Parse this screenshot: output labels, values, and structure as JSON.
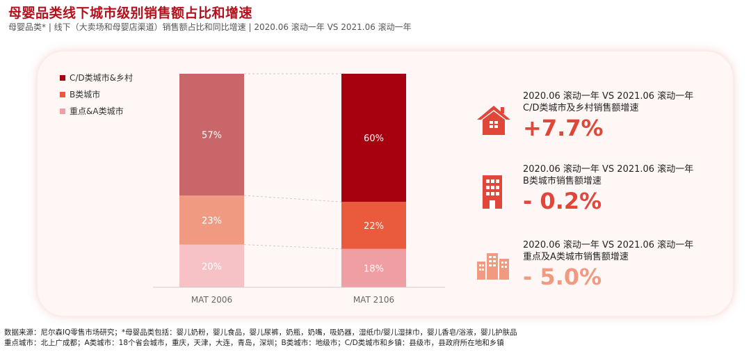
{
  "header": {
    "title": "母婴品类线下城市级别销售额占比和增速",
    "subtitle": "母婴品类* | 线下（大卖场和母婴店渠道）销售额占比和同比增速 | 2020.06 滚动一年 VS 2021.06 滚动一年"
  },
  "colors": {
    "brand": "#b5101c",
    "accent": "#e0473a"
  },
  "chart_data": {
    "type": "bar",
    "stacked": true,
    "unit": "%",
    "categories": [
      "MAT 2006",
      "MAT 2106"
    ],
    "series": [
      {
        "name": "重点&A类城市",
        "values": [
          20,
          18
        ],
        "labels": [
          "20%",
          "18%"
        ],
        "colors": [
          "#f6c2c6",
          "#ef9ea3"
        ]
      },
      {
        "name": "B类城市",
        "values": [
          23,
          22
        ],
        "labels": [
          "23%",
          "22%"
        ],
        "colors": [
          "#f09a82",
          "#e95b3c"
        ]
      },
      {
        "name": "C/D类城市&乡村",
        "values": [
          57,
          60
        ],
        "labels": [
          "57%",
          "60%"
        ],
        "colors": [
          "#c8666a",
          "#a7000e"
        ]
      }
    ],
    "legend": [
      {
        "label": "C/D类城市&乡村",
        "color": "#a7000e"
      },
      {
        "label": "B类城市",
        "color": "#e95b3c"
      },
      {
        "label": "重点&A类城市",
        "color": "#ef9ea3"
      }
    ],
    "legend_position": "top-left",
    "ylim": [
      0,
      100
    ],
    "grid": false
  },
  "metrics": [
    {
      "period": "2020.06 滚动一年 VS 2021.06 滚动一年",
      "name": "C/D类城市及乡村销售额增速",
      "value": "+7.7%",
      "icon": "house-icon"
    },
    {
      "period": "2020.06 滚动一年 VS 2021.06 滚动一年",
      "name": "B类城市销售额增速",
      "value": "- 0.2%",
      "icon": "building-icon"
    },
    {
      "period": "2020.06 滚动一年 VS 2021.06 滚动一年",
      "name": "重点及A类城市销售额增速",
      "value": "- 5.0%",
      "icon": "city-skyline-icon"
    }
  ],
  "footnotes": {
    "line1": "数据来源：尼尔森IQ零售市场研究；*母婴品类包括：婴儿奶粉，婴儿食品，婴儿尿裤，奶瓶，奶嘴，吸奶器，湿纸巾/婴儿湿抹巾，婴儿香皂/浴液，婴儿护肤品",
    "line2": "重点城市：北上广成都；A类城市：18个省会城市，重庆，天津，大连，青岛，深圳；B类城市：地级市；C/D类城市和乡镇：县级市，县政府所在地和乡镇"
  }
}
